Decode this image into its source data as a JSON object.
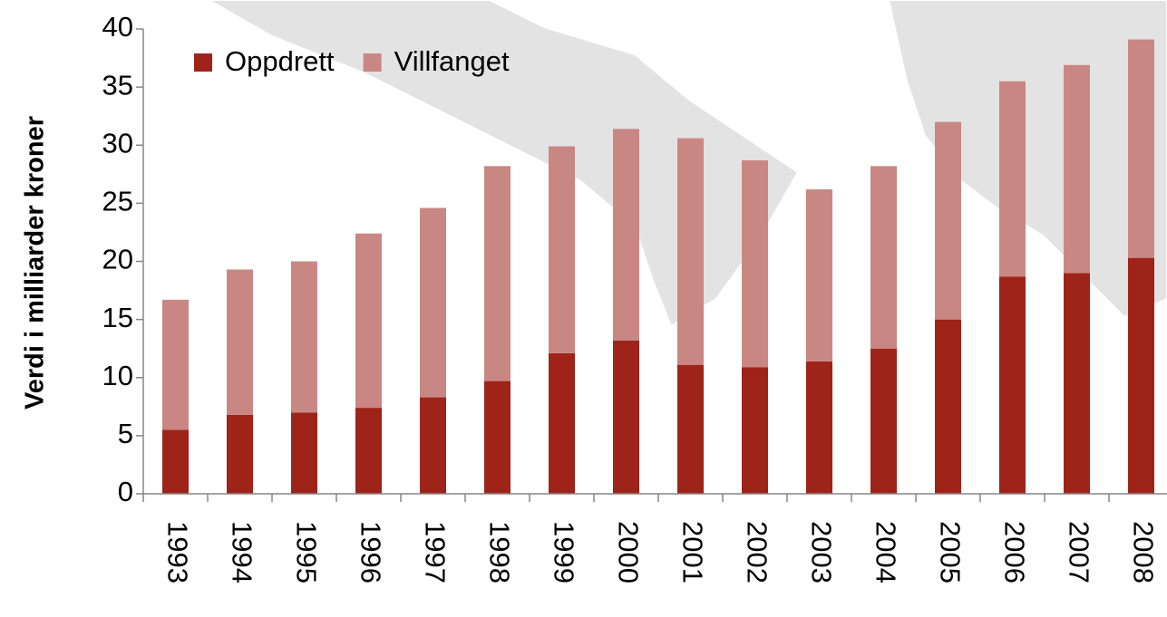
{
  "chart_data": {
    "type": "stacked_bar",
    "y_label": "Verdi i milliarder kroner",
    "categories": [
      "1993",
      "1994",
      "1995",
      "1996",
      "1997",
      "1998",
      "1999",
      "2000",
      "2001",
      "2002",
      "2003",
      "2004",
      "2005",
      "2006",
      "2007",
      "2008"
    ],
    "series": [
      {
        "name": "Oppdrett",
        "color": "#9e2318",
        "values": [
          5.5,
          6.8,
          7.0,
          7.4,
          8.3,
          9.7,
          12.1,
          13.2,
          11.1,
          10.9,
          11.4,
          12.5,
          15.0,
          18.7,
          19.0,
          20.3
        ]
      },
      {
        "name": "Villfanget",
        "color": "#c98784",
        "values": [
          11.2,
          12.5,
          13.0,
          15.0,
          16.3,
          18.5,
          17.8,
          18.2,
          19.5,
          17.8,
          14.8,
          15.7,
          17.0,
          16.8,
          17.9,
          18.8
        ]
      }
    ],
    "ylim": [
      0,
      40
    ],
    "yticks": [
      0,
      5,
      10,
      15,
      20,
      25,
      30,
      35,
      40
    ],
    "grid": false,
    "legend": "top-left"
  }
}
